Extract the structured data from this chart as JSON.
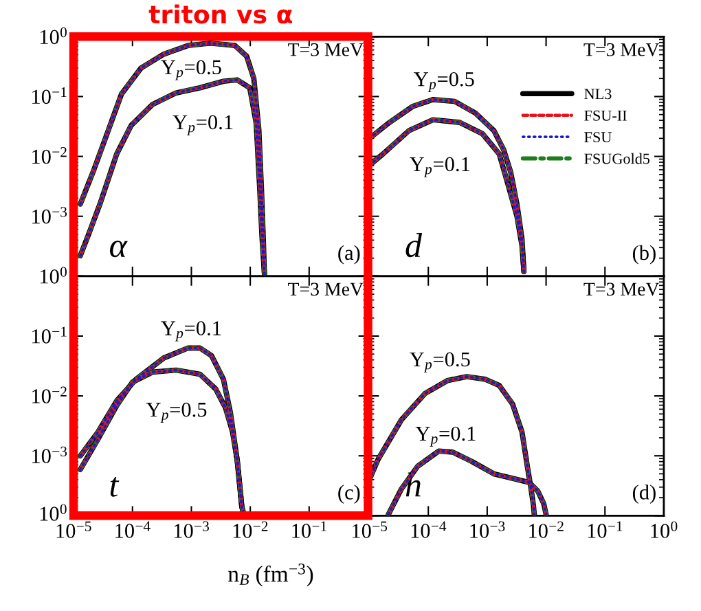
{
  "chart_data": [
    {
      "type": "line",
      "title": "triton vs α",
      "log": "xy",
      "xlim": [
        1e-05,
        1
      ],
      "ylim": [
        0.0001,
        1
      ],
      "tick_labels": "y",
      "xticks": [
        1e-05,
        0.0001,
        0.001,
        0.01,
        0.1,
        1
      ],
      "yticks": [
        {
          "value": 1,
          "label": "10$^{0}$"
        },
        {
          "value": 0.1,
          "label": "10$^{−1}$"
        },
        {
          "value": 0.01,
          "label": "10$^{−2}$"
        },
        {
          "value": 0.001,
          "label": "10$^{−3}$"
        },
        {
          "value": 0.0001,
          "label": null
        }
      ],
      "annotations": [
        "T=3 MeV",
        "α",
        "(a)",
        "Y$_{p}$=0.5",
        "Y$_{p}$=0.1"
      ],
      "series": [
        {
          "color": "#000000",
          "line_style": "solid",
          "x": [
            1.3e-05,
            2.2e-05,
            3.4e-05,
            6.5e-05,
            0.00014,
            0.00034,
            0.00087,
            0.0021,
            0.0055,
            0.0087,
            0.0115,
            0.014,
            0.0155,
            0.0166,
            0.0174
          ],
          "values": [
            0.0016,
            0.0059,
            0.019,
            0.11,
            0.3,
            0.51,
            0.71,
            0.78,
            0.71,
            0.47,
            0.2,
            0.028,
            0.0028,
            0.00046,
            0.00011
          ]
        },
        {
          "color": "#000000",
          "line_style": "solid",
          "x": [
            1.3e-05,
            1.8e-05,
            2.8e-05,
            5.4e-05,
            9.5e-05,
            0.00022,
            0.00055,
            0.0014,
            0.0035,
            0.006,
            0.0098,
            0.0126,
            0.0145,
            0.0158,
            0.0174
          ],
          "values": [
            0.00022,
            0.0005,
            0.0016,
            0.011,
            0.033,
            0.074,
            0.115,
            0.14,
            0.18,
            0.19,
            0.14,
            0.036,
            0.0028,
            0.00046,
            0.00011
          ]
        },
        {
          "color": "#e8141a",
          "line_style": "dashed",
          "x": [
            1.3e-05,
            2.2e-05,
            3.4e-05,
            6.5e-05,
            0.00014,
            0.00034,
            0.00087,
            0.0021,
            0.0055,
            0.0087,
            0.0115,
            0.014,
            0.0155,
            0.0166,
            0.0174
          ],
          "values": [
            0.0016,
            0.0059,
            0.019,
            0.11,
            0.3,
            0.51,
            0.71,
            0.78,
            0.71,
            0.47,
            0.2,
            0.028,
            0.0028,
            0.00046,
            0.00011
          ]
        },
        {
          "color": "#e8141a",
          "line_style": "dashed",
          "x": [
            1.3e-05,
            1.8e-05,
            2.8e-05,
            5.4e-05,
            9.5e-05,
            0.00022,
            0.00055,
            0.0014,
            0.0035,
            0.006,
            0.0098,
            0.0126,
            0.0145,
            0.0158,
            0.0174
          ],
          "values": [
            0.00022,
            0.0005,
            0.0016,
            0.011,
            0.033,
            0.074,
            0.115,
            0.14,
            0.18,
            0.19,
            0.14,
            0.036,
            0.0028,
            0.00046,
            0.00011
          ]
        },
        {
          "color": "#1a1ac8",
          "line_style": "dotted",
          "x": [
            1.3e-05,
            2.2e-05,
            3.4e-05,
            6.5e-05,
            0.00014,
            0.00034,
            0.00087,
            0.0021,
            0.0055,
            0.0087,
            0.0115,
            0.014,
            0.0155,
            0.0166,
            0.0174
          ],
          "values": [
            0.0016,
            0.0059,
            0.019,
            0.11,
            0.3,
            0.51,
            0.71,
            0.78,
            0.71,
            0.47,
            0.2,
            0.028,
            0.0028,
            0.00046,
            0.00011
          ]
        },
        {
          "color": "#1a1ac8",
          "line_style": "dotted",
          "x": [
            1.3e-05,
            1.8e-05,
            2.8e-05,
            5.4e-05,
            9.5e-05,
            0.00022,
            0.00055,
            0.0014,
            0.0035,
            0.006,
            0.0098,
            0.0126,
            0.0145,
            0.0158,
            0.0174
          ],
          "values": [
            0.00022,
            0.0005,
            0.0016,
            0.011,
            0.033,
            0.074,
            0.115,
            0.14,
            0.18,
            0.19,
            0.14,
            0.036,
            0.0028,
            0.00046,
            0.00011
          ]
        },
        {
          "color": "#1e7d1e",
          "line_style": "dashdot",
          "x": [
            1.3e-05,
            2.2e-05,
            3.4e-05,
            6.5e-05,
            0.00014,
            0.00034,
            0.00087,
            0.0021,
            0.0055,
            0.0087,
            0.0115,
            0.014,
            0.0155,
            0.0166,
            0.0174
          ],
          "values": [
            0.0016,
            0.0059,
            0.019,
            0.11,
            0.3,
            0.51,
            0.71,
            0.78,
            0.71,
            0.47,
            0.2,
            0.028,
            0.0028,
            0.00046,
            0.00011
          ]
        },
        {
          "color": "#1e7d1e",
          "line_style": "dashdot",
          "x": [
            1.3e-05,
            1.8e-05,
            2.8e-05,
            5.4e-05,
            9.5e-05,
            0.00022,
            0.00055,
            0.0014,
            0.0035,
            0.006,
            0.0098,
            0.0126,
            0.0145,
            0.0158,
            0.0174
          ],
          "values": [
            0.00022,
            0.0005,
            0.0016,
            0.011,
            0.033,
            0.074,
            0.115,
            0.14,
            0.18,
            0.19,
            0.14,
            0.036,
            0.0028,
            0.00046,
            0.00011
          ]
        }
      ]
    },
    {
      "type": "line",
      "log": "xy",
      "xlim": [
        1e-05,
        1
      ],
      "ylim": [
        0.0001,
        1
      ],
      "tick_labels": false,
      "legend": "right",
      "xticks": [
        1e-05,
        0.0001,
        0.001,
        0.01,
        0.1,
        1
      ],
      "yticks": [
        1,
        0.1,
        0.01,
        0.001,
        0.0001
      ],
      "annotations": [
        "T=3 MeV",
        "d",
        "(b)",
        "Y$_{p}$=0.5",
        "Y$_{p}$=0.1"
      ],
      "series": [
        {
          "name": "NL3",
          "color": "#000000",
          "line_style": "solid",
          "x": [
            1e-05,
            2.2e-05,
            5.5e-05,
            0.00012,
            0.00028,
            0.00063,
            0.0013,
            0.0019,
            0.0025,
            0.0032,
            0.0039,
            0.0042
          ],
          "values": [
            0.02,
            0.037,
            0.069,
            0.089,
            0.083,
            0.053,
            0.027,
            0.013,
            0.0055,
            0.0016,
            0.00042,
            0.00012
          ]
        },
        {
          "color": "#000000",
          "line_style": "solid",
          "x": [
            1e-05,
            1.7e-05,
            4.7e-05,
            0.00012,
            0.00034,
            0.00083,
            0.0016,
            0.0022,
            0.0032,
            0.0039,
            0.0042
          ],
          "values": [
            0.0071,
            0.011,
            0.027,
            0.041,
            0.037,
            0.024,
            0.011,
            0.0037,
            0.001,
            0.00032,
            0.00012
          ]
        },
        {
          "name": "FSU-II",
          "color": "#e8141a",
          "line_style": "dashed",
          "x": [
            1e-05,
            2.2e-05,
            5.5e-05,
            0.00012,
            0.00028,
            0.00063,
            0.0013,
            0.0019,
            0.0025,
            0.0032,
            0.0039,
            0.0042
          ],
          "values": [
            0.02,
            0.037,
            0.069,
            0.089,
            0.083,
            0.053,
            0.027,
            0.013,
            0.0055,
            0.0016,
            0.00042,
            0.00012
          ]
        },
        {
          "color": "#e8141a",
          "line_style": "dashed",
          "x": [
            1e-05,
            1.7e-05,
            4.7e-05,
            0.00012,
            0.00034,
            0.00083,
            0.0016,
            0.0022,
            0.0032,
            0.0039,
            0.0042
          ],
          "values": [
            0.0071,
            0.011,
            0.027,
            0.041,
            0.037,
            0.024,
            0.011,
            0.0037,
            0.001,
            0.00032,
            0.00012
          ]
        },
        {
          "name": "FSU",
          "color": "#1a1ac8",
          "line_style": "dotted",
          "x": [
            1e-05,
            2.2e-05,
            5.5e-05,
            0.00012,
            0.00028,
            0.00063,
            0.0013,
            0.0019,
            0.0025,
            0.0032,
            0.0039,
            0.0042
          ],
          "values": [
            0.02,
            0.037,
            0.069,
            0.089,
            0.083,
            0.053,
            0.027,
            0.013,
            0.0055,
            0.0016,
            0.00042,
            0.00012
          ]
        },
        {
          "color": "#1a1ac8",
          "line_style": "dotted",
          "x": [
            1e-05,
            1.7e-05,
            4.7e-05,
            0.00012,
            0.00034,
            0.00083,
            0.0016,
            0.0022,
            0.0032,
            0.0039,
            0.0042
          ],
          "values": [
            0.0071,
            0.011,
            0.027,
            0.041,
            0.037,
            0.024,
            0.011,
            0.0037,
            0.001,
            0.00032,
            0.00012
          ]
        },
        {
          "name": "FSUGold5",
          "color": "#1e7d1e",
          "line_style": "dashdot",
          "x": [
            1e-05,
            2.2e-05,
            5.5e-05,
            0.00012,
            0.00028,
            0.00063,
            0.0013,
            0.0019,
            0.0025,
            0.0032,
            0.0039,
            0.0042
          ],
          "values": [
            0.02,
            0.037,
            0.069,
            0.089,
            0.083,
            0.053,
            0.027,
            0.013,
            0.0055,
            0.0016,
            0.00042,
            0.00012
          ]
        },
        {
          "color": "#1e7d1e",
          "line_style": "dashdot",
          "x": [
            1e-05,
            1.7e-05,
            4.7e-05,
            0.00012,
            0.00034,
            0.00083,
            0.0016,
            0.0022,
            0.0032,
            0.0039,
            0.0042
          ],
          "values": [
            0.0071,
            0.011,
            0.027,
            0.041,
            0.037,
            0.024,
            0.011,
            0.0037,
            0.001,
            0.00032,
            0.00012
          ]
        }
      ]
    },
    {
      "type": "line",
      "log": "xy",
      "xlim": [
        1e-05,
        1
      ],
      "ylim": [
        0.0001,
        1
      ],
      "xlabel": "n$_{B}$ (fm$^{−3}$)",
      "xticks": [
        {
          "value": 1e-05,
          "label": "10$^{−5}$"
        },
        {
          "value": 0.0001,
          "label": "10$^{−4}$"
        },
        {
          "value": 0.001,
          "label": "10$^{−3}$"
        },
        {
          "value": 0.01,
          "label": "10$^{−2}$"
        },
        {
          "value": 0.1,
          "label": "10$^{−1}$"
        },
        {
          "value": 1,
          "label": null
        }
      ],
      "yticks": [
        {
          "value": 1,
          "label": "10$^{0}$"
        },
        {
          "value": 0.1,
          "label": "10$^{−1}$"
        },
        {
          "value": 0.01,
          "label": "10$^{−2}$"
        },
        {
          "value": 0.001,
          "label": "10$^{−3}$"
        },
        {
          "value": 0.0001,
          "label": null
        }
      ],
      "annotations": [
        "T=3 MeV",
        "t",
        "(c)",
        "Y$_{p}$=0.1",
        "Y$_{p}$=0.5",
        "10$^{0}$"
      ],
      "series": [
        {
          "color": "#000000",
          "line_style": "solid",
          "x": [
            1.3e-05,
            2.6e-05,
            5.4e-05,
            0.000115,
            0.00034,
            0.00087,
            0.0014,
            0.0022,
            0.0035,
            0.0046,
            0.006,
            0.0072,
            0.0076
          ],
          "values": [
            0.001,
            0.0025,
            0.0083,
            0.019,
            0.043,
            0.063,
            0.063,
            0.047,
            0.019,
            0.0053,
            0.00085,
            0.00014,
            0.000115
          ]
        },
        {
          "color": "#000000",
          "line_style": "solid",
          "x": [
            1.3e-05,
            2.6e-05,
            5.4e-05,
            0.0001,
            0.00022,
            0.00055,
            0.0014,
            0.0026,
            0.0038,
            0.005,
            0.006,
            0.0072,
            0.0076
          ],
          "values": [
            0.00059,
            0.0019,
            0.0069,
            0.017,
            0.025,
            0.027,
            0.023,
            0.013,
            0.0063,
            0.0025,
            0.00085,
            0.00014,
            0.000115
          ]
        },
        {
          "color": "#e8141a",
          "line_style": "dashed",
          "x": [
            1.3e-05,
            2.6e-05,
            5.4e-05,
            0.000115,
            0.00034,
            0.00087,
            0.0014,
            0.0022,
            0.0035,
            0.0046,
            0.006,
            0.0072,
            0.0076
          ],
          "values": [
            0.001,
            0.0025,
            0.0083,
            0.019,
            0.043,
            0.063,
            0.063,
            0.047,
            0.019,
            0.0053,
            0.00085,
            0.00014,
            0.000115
          ]
        },
        {
          "color": "#e8141a",
          "line_style": "dashed",
          "x": [
            1.3e-05,
            2.6e-05,
            5.4e-05,
            0.0001,
            0.00022,
            0.00055,
            0.0014,
            0.0026,
            0.0038,
            0.005,
            0.006,
            0.0072,
            0.0076
          ],
          "values": [
            0.00059,
            0.0019,
            0.0069,
            0.017,
            0.025,
            0.027,
            0.023,
            0.013,
            0.0063,
            0.0025,
            0.00085,
            0.00014,
            0.000115
          ]
        },
        {
          "color": "#1a1ac8",
          "line_style": "dotted",
          "x": [
            1.3e-05,
            2.6e-05,
            5.4e-05,
            0.000115,
            0.00034,
            0.00087,
            0.0014,
            0.0022,
            0.0035,
            0.0046,
            0.006,
            0.0072,
            0.0076
          ],
          "values": [
            0.001,
            0.0025,
            0.0083,
            0.019,
            0.043,
            0.063,
            0.063,
            0.047,
            0.019,
            0.0053,
            0.00085,
            0.00014,
            0.000115
          ]
        },
        {
          "color": "#1a1ac8",
          "line_style": "dotted",
          "x": [
            1.3e-05,
            2.6e-05,
            5.4e-05,
            0.0001,
            0.00022,
            0.00055,
            0.0014,
            0.0026,
            0.0038,
            0.005,
            0.006,
            0.0072,
            0.0076
          ],
          "values": [
            0.00059,
            0.0019,
            0.0069,
            0.017,
            0.025,
            0.027,
            0.023,
            0.013,
            0.0063,
            0.0025,
            0.00085,
            0.00014,
            0.000115
          ]
        },
        {
          "color": "#1e7d1e",
          "line_style": "dashdot",
          "x": [
            1.3e-05,
            2.6e-05,
            5.4e-05,
            0.000115,
            0.00034,
            0.00087,
            0.0014,
            0.0022,
            0.0035,
            0.0046,
            0.006,
            0.0072,
            0.0076
          ],
          "values": [
            0.001,
            0.0025,
            0.0083,
            0.019,
            0.043,
            0.063,
            0.063,
            0.047,
            0.019,
            0.0053,
            0.00085,
            0.00014,
            0.000115
          ]
        },
        {
          "color": "#1e7d1e",
          "line_style": "dashdot",
          "x": [
            1.3e-05,
            2.6e-05,
            5.4e-05,
            0.0001,
            0.00022,
            0.00055,
            0.0014,
            0.0026,
            0.0038,
            0.005,
            0.006,
            0.0072,
            0.0076
          ],
          "values": [
            0.00059,
            0.0019,
            0.0069,
            0.017,
            0.025,
            0.027,
            0.023,
            0.013,
            0.0063,
            0.0025,
            0.00085,
            0.00014,
            0.000115
          ]
        }
      ]
    },
    {
      "type": "line",
      "log": "xy",
      "xlim": [
        1e-05,
        1
      ],
      "ylim": [
        0.0001,
        1
      ],
      "tick_labels": "x",
      "xticks": [
        {
          "value": 1e-05,
          "label": "10$^{−5}$"
        },
        {
          "value": 0.0001,
          "label": "10$^{−4}$"
        },
        {
          "value": 0.001,
          "label": "10$^{−3}$"
        },
        {
          "value": 0.01,
          "label": "10$^{−2}$"
        },
        {
          "value": 0.1,
          "label": "10$^{−1}$"
        },
        {
          "value": 1,
          "label": "10$^{0}$"
        }
      ],
      "yticks": [
        1,
        0.1,
        0.01,
        0.001,
        0.0001
      ],
      "annotations": [
        "T=3 MeV",
        "h",
        "(d)",
        "Y$_{p}$=0.5",
        "Y$_{p}$=0.1"
      ],
      "series": [
        {
          "color": "#000000",
          "line_style": "solid",
          "x": [
            1e-05,
            1.4e-05,
            3.5e-05,
            8.8e-05,
            0.00021,
            0.00045,
            0.00092,
            0.0016,
            0.0027,
            0.0039,
            0.0048,
            0.0055,
            0.0061,
            0.0063
          ],
          "values": [
            0.0004,
            0.00087,
            0.004,
            0.011,
            0.018,
            0.021,
            0.019,
            0.015,
            0.0073,
            0.0025,
            0.00067,
            0.0003,
            0.00015,
            0.000105
          ]
        },
        {
          "color": "#000000",
          "line_style": "solid",
          "x": [
            2.1e-05,
            3.5e-05,
            6.6e-05,
            0.00015,
            0.00026,
            0.00054,
            0.0013,
            0.0027,
            0.0051,
            0.0072,
            0.0091,
            0.01
          ],
          "values": [
            0.000105,
            0.00028,
            0.00067,
            0.0012,
            0.00115,
            0.00081,
            0.0005,
            0.00042,
            0.00036,
            0.00026,
            0.00016,
            0.000105
          ]
        },
        {
          "color": "#e8141a",
          "line_style": "dashed",
          "x": [
            1e-05,
            1.4e-05,
            3.5e-05,
            8.8e-05,
            0.00021,
            0.00045,
            0.00092,
            0.0016,
            0.0027,
            0.0039,
            0.0048,
            0.0055,
            0.0061,
            0.0063
          ],
          "values": [
            0.0004,
            0.00087,
            0.004,
            0.011,
            0.018,
            0.021,
            0.019,
            0.015,
            0.0073,
            0.0025,
            0.00067,
            0.0003,
            0.00015,
            0.000105
          ]
        },
        {
          "color": "#e8141a",
          "line_style": "dashed",
          "x": [
            2.1e-05,
            3.5e-05,
            6.6e-05,
            0.00015,
            0.00026,
            0.00054,
            0.0013,
            0.0027,
            0.0051,
            0.0072,
            0.0091,
            0.01
          ],
          "values": [
            0.000105,
            0.00028,
            0.00067,
            0.0012,
            0.00115,
            0.00081,
            0.0005,
            0.00042,
            0.00036,
            0.00026,
            0.00016,
            0.000105
          ]
        },
        {
          "color": "#1a1ac8",
          "line_style": "dotted",
          "x": [
            1e-05,
            1.4e-05,
            3.5e-05,
            8.8e-05,
            0.00021,
            0.00045,
            0.00092,
            0.0016,
            0.0027,
            0.0039,
            0.0048,
            0.0055,
            0.0061,
            0.0063
          ],
          "values": [
            0.0004,
            0.00087,
            0.004,
            0.011,
            0.018,
            0.021,
            0.019,
            0.015,
            0.0073,
            0.0025,
            0.00067,
            0.0003,
            0.00015,
            0.000105
          ]
        },
        {
          "color": "#1a1ac8",
          "line_style": "dotted",
          "x": [
            2.1e-05,
            3.5e-05,
            6.6e-05,
            0.00015,
            0.00026,
            0.00054,
            0.0013,
            0.0027,
            0.0051,
            0.0072,
            0.0091,
            0.01
          ],
          "values": [
            0.000105,
            0.00028,
            0.00067,
            0.0012,
            0.00115,
            0.00081,
            0.0005,
            0.00042,
            0.00036,
            0.00026,
            0.00016,
            0.000105
          ]
        },
        {
          "color": "#1e7d1e",
          "line_style": "dashdot",
          "x": [
            1e-05,
            1.4e-05,
            3.5e-05,
            8.8e-05,
            0.00021,
            0.00045,
            0.00092,
            0.0016,
            0.0027,
            0.0039,
            0.0048,
            0.0055,
            0.0061,
            0.0063
          ],
          "values": [
            0.0004,
            0.00087,
            0.004,
            0.011,
            0.018,
            0.021,
            0.019,
            0.015,
            0.0073,
            0.0025,
            0.00067,
            0.0003,
            0.00015,
            0.000105
          ]
        },
        {
          "color": "#1e7d1e",
          "line_style": "dashdot",
          "x": [
            2.1e-05,
            3.5e-05,
            6.6e-05,
            0.00015,
            0.00026,
            0.00054,
            0.0013,
            0.0027,
            0.0051,
            0.0072,
            0.0091,
            0.01
          ],
          "values": [
            0.000105,
            0.00028,
            0.00067,
            0.0012,
            0.00115,
            0.00081,
            0.0005,
            0.00042,
            0.00036,
            0.00026,
            0.00016,
            0.000105
          ]
        }
      ]
    }
  ]
}
